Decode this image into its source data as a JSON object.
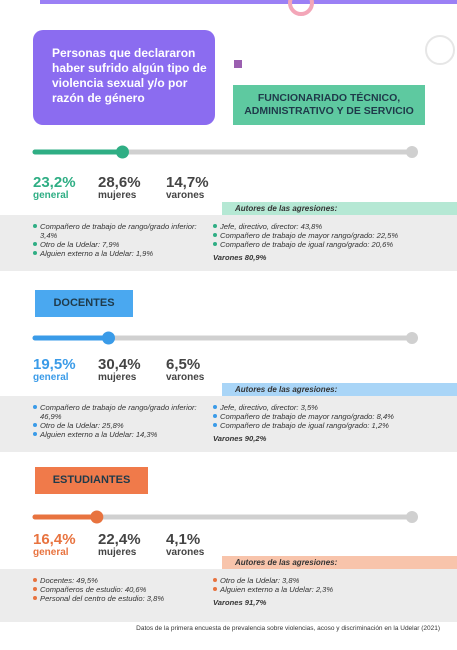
{
  "title": "Personas que declararon haber sufrido algún tipo de violencia sexual y/o por razón de género",
  "sections": [
    {
      "label": "FUNCIONARIADO TÉCNICO, ADMINISTRATIVO Y DE SERVICIO",
      "general": {
        "value": 23.2,
        "label": "23,2%"
      },
      "general_caption": "general",
      "women": "28,6%",
      "women_caption": "mujeres",
      "men": "14,7%",
      "men_caption": "varones",
      "authors_heading": "Autores de las agresiones:",
      "authors_left": [
        "Compañero de trabajo de rango/grado inferior: 3,4%",
        "Otro de la Udelar: 7,9%",
        "Alguien externo a la Udelar: 1,9%"
      ],
      "authors_right": [
        "Jefe, directivo, director: 43,8%",
        "Compañero de trabajo de mayor rango/grado: 22,5%",
        "Compañero de trabajo de igual rango/grado: 20,6%"
      ],
      "total": "Varones 80,9%"
    },
    {
      "label": "DOCENTES",
      "general": {
        "value": 19.5,
        "label": "19,5%"
      },
      "general_caption": "general",
      "women": "30,4%",
      "women_caption": "mujeres",
      "men": "6,5%",
      "men_caption": "varones",
      "authors_heading": "Autores de las agresiones:",
      "authors_left": [
        "Compañero de trabajo de rango/grado inferior: 46,9%",
        "Otro de la Udelar: 25,8%",
        "Alguien externo a la Udelar: 14,3%"
      ],
      "authors_right": [
        "Jefe, directivo, director: 3,5%",
        "Compañero de trabajo de mayor rango/grado: 8,4%",
        "Compañero de trabajo de igual rango/grado: 1,2%"
      ],
      "total": "Varones 90,2%"
    },
    {
      "label": "ESTUDIANTES",
      "general": {
        "value": 16.4,
        "label": "16,4%"
      },
      "general_caption": "general",
      "women": "22,4%",
      "women_caption": "mujeres",
      "men": "4,1%",
      "men_caption": "varones",
      "authors_heading": "Autores de las agresiones:",
      "authors_left": [
        "Docentes: 49,5%",
        "Compañeros de estudio: 40,6%",
        "Personal del centro de estudio: 3,8%"
      ],
      "authors_right": [
        "Otro de la Udelar: 3,8%",
        "Alguien externo a la Udelar: 2,3%"
      ],
      "total": "Varones 91,7%"
    }
  ],
  "footnote": "Datos de la primera encuesta de prevalencia sobre violencias, acoso y discriminación en la Udelar (2021)"
}
